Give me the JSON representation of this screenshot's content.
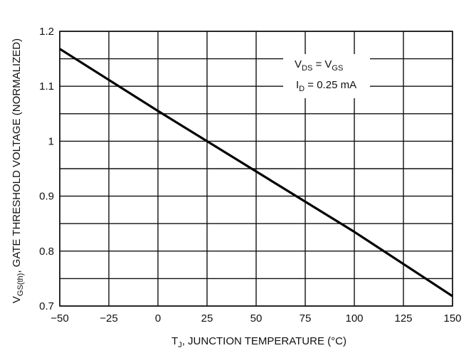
{
  "chart_data": {
    "type": "line",
    "xlabel_main": "T",
    "xlabel_sub": "J",
    "xlabel_rest": ", JUNCTION TEMPERATURE (°C)",
    "ylabel_main": "V",
    "ylabel_sub": "GS(th)",
    "ylabel_rest": ", GATE THRESHOLD VOLTAGE (NORMALIZED)",
    "xlim": [
      -50,
      150
    ],
    "ylim": [
      0.7,
      1.2
    ],
    "x_ticks": [
      -50,
      -25,
      0,
      25,
      50,
      75,
      100,
      125,
      150
    ],
    "x_tick_labels": [
      "−50",
      "−25",
      "0",
      "25",
      "50",
      "75",
      "100",
      "125",
      "150"
    ],
    "y_ticks": [
      0.7,
      0.8,
      0.9,
      1.0,
      1.1,
      1.2
    ],
    "y_tick_labels": [
      "0.7",
      "0.8",
      "0.9",
      "1",
      "1.1",
      "1.2"
    ],
    "minor_y_step": 0.05,
    "grid": true,
    "annotation": {
      "line1": {
        "a": "V",
        "a_sub": "DS",
        "eq": " = ",
        "b": "V",
        "b_sub": "GS"
      },
      "line2": {
        "a": "I",
        "a_sub": "D",
        "rest": " = 0.25 mA"
      }
    },
    "series": [
      {
        "x": [
          -50,
          0,
          50,
          100,
          150
        ],
        "y": [
          1.168,
          1.055,
          0.945,
          0.835,
          0.718
        ]
      }
    ]
  }
}
